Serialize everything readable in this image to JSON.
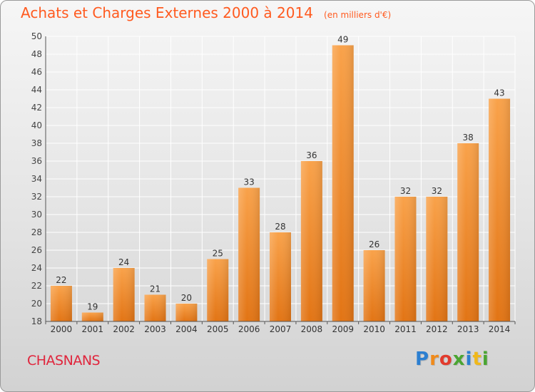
{
  "chart_data": {
    "type": "bar",
    "title": "Achats et Charges Externes 2000 à 2014",
    "subtitle": "(en milliers d'€)",
    "categories": [
      "2000",
      "2001",
      "2002",
      "2003",
      "2004",
      "2005",
      "2006",
      "2007",
      "2008",
      "2009",
      "2010",
      "2011",
      "2012",
      "2013",
      "2014"
    ],
    "values": [
      22,
      19,
      24,
      21,
      20,
      25,
      33,
      28,
      36,
      49,
      26,
      32,
      32,
      38,
      43
    ],
    "ylim": [
      18,
      50
    ],
    "yticks": [
      18,
      20,
      22,
      24,
      26,
      28,
      30,
      32,
      34,
      36,
      38,
      40,
      42,
      44,
      46,
      48,
      50
    ],
    "grid": true,
    "bar_color": "#f28c28"
  },
  "footer": {
    "commune": "CHASNANS",
    "brand_letters": [
      {
        "ch": "P",
        "color": "#2c7fd1"
      },
      {
        "ch": "r",
        "color": "#f08a1a"
      },
      {
        "ch": "o",
        "color": "#e23b2d"
      },
      {
        "ch": "x",
        "color": "#4aa532"
      },
      {
        "ch": "i",
        "color": "#2c7fd1"
      },
      {
        "ch": "t",
        "color": "#f0b81a"
      },
      {
        "ch": "i",
        "color": "#4aa532"
      }
    ]
  }
}
